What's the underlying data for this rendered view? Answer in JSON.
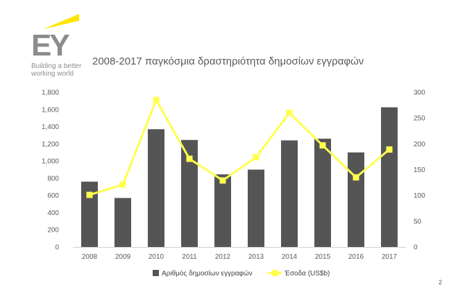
{
  "brand": {
    "logo_text": "EY",
    "tagline_line1": "Building a better",
    "tagline_line2": "working world",
    "accent_color": "#ffe600"
  },
  "corner_mark": "2",
  "chart_data": {
    "type": "bar+line",
    "title": "2008-2017 παγκόσμια δραστηριότητα δημοσίων εγγραφών",
    "categories": [
      "2008",
      "2009",
      "2010",
      "2011",
      "2012",
      "2013",
      "2014",
      "2015",
      "2016",
      "2017"
    ],
    "series": [
      {
        "name": "Αριθμός δημοσίων εγγραφών",
        "type": "bar",
        "axis": "left",
        "color": "#555555",
        "values": [
          760,
          570,
          1370,
          1245,
          845,
          900,
          1240,
          1260,
          1100,
          1625
        ]
      },
      {
        "name": "Έσοδα (US$b)",
        "type": "line",
        "axis": "right",
        "color": "#ffff4d",
        "values": [
          101,
          121,
          285,
          171,
          129,
          174,
          260,
          197,
          135,
          189
        ]
      }
    ],
    "y_left": {
      "min": 0,
      "max": 1800,
      "ticks": [
        "0",
        "200",
        "400",
        "600",
        "800",
        "1,000",
        "1,200",
        "1,400",
        "1,600",
        "1,800"
      ]
    },
    "y_right": {
      "min": 0,
      "max": 300,
      "ticks": [
        "0",
        "50",
        "100",
        "150",
        "200",
        "250",
        "300"
      ]
    },
    "grid": false,
    "legend_position": "bottom"
  }
}
